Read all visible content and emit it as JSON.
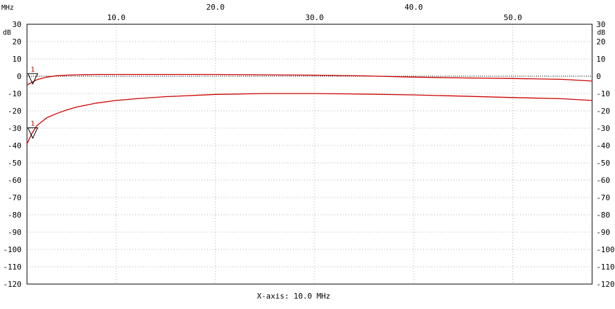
{
  "chart_data": {
    "type": "line",
    "x_unit": "MHz",
    "y_unit": "dB",
    "xlim": [
      1.0,
      58.0
    ],
    "ylim": [
      -120,
      30
    ],
    "x_ticks_top": [
      20.0,
      30.0,
      40.0,
      50.0
    ],
    "x_ticks_bottom": [
      10.0,
      20.0,
      30.0,
      40.0,
      50.0
    ],
    "x_tick_labels_top": [
      "20.0",
      "40.0"
    ],
    "x_tick_labels_bottom": [
      "10.0",
      "30.0",
      "50.0"
    ],
    "y_ticks": [
      30,
      20,
      10,
      0,
      -10,
      -20,
      -30,
      -40,
      -50,
      -60,
      -70,
      -80,
      -90,
      -100,
      -110,
      -120
    ],
    "grid": true,
    "reference_level": 0,
    "x_axis_caption": "X-axis: 10.0 MHz",
    "colors": {
      "trace": "#cc0000",
      "grid": "#b0b0b0",
      "axis": "#000000"
    },
    "series": [
      {
        "marker_label": "1",
        "marker_x": 1.3,
        "x": [
          1.0,
          1.5,
          2.0,
          3.0,
          4.0,
          5.0,
          6.0,
          8.0,
          10.0,
          12.0,
          15.0,
          20.0,
          25.0,
          30.0,
          35.0,
          40.0,
          45.0,
          50.0,
          55.0,
          58.0
        ],
        "y": [
          -5,
          -3.5,
          -2,
          -0.5,
          0.3,
          0.6,
          0.8,
          1.0,
          1.0,
          1.0,
          1.0,
          1.0,
          0.8,
          0.6,
          0.2,
          -0.5,
          -1.0,
          -1.3,
          -1.8,
          -2.8
        ]
      },
      {
        "marker_label": "1",
        "marker_x": 1.3,
        "x": [
          1.0,
          1.5,
          2.0,
          3.0,
          4.0,
          5.0,
          6.0,
          8.0,
          10.0,
          12.0,
          15.0,
          20.0,
          25.0,
          30.0,
          35.0,
          40.0,
          45.0,
          50.0,
          55.0,
          58.0
        ],
        "y": [
          -39,
          -33,
          -28.5,
          -24,
          -21.5,
          -19.5,
          -17.8,
          -15.5,
          -14,
          -13,
          -11.8,
          -10.5,
          -10,
          -10,
          -10.3,
          -10.8,
          -11.5,
          -12.3,
          -13,
          -14
        ]
      }
    ]
  }
}
